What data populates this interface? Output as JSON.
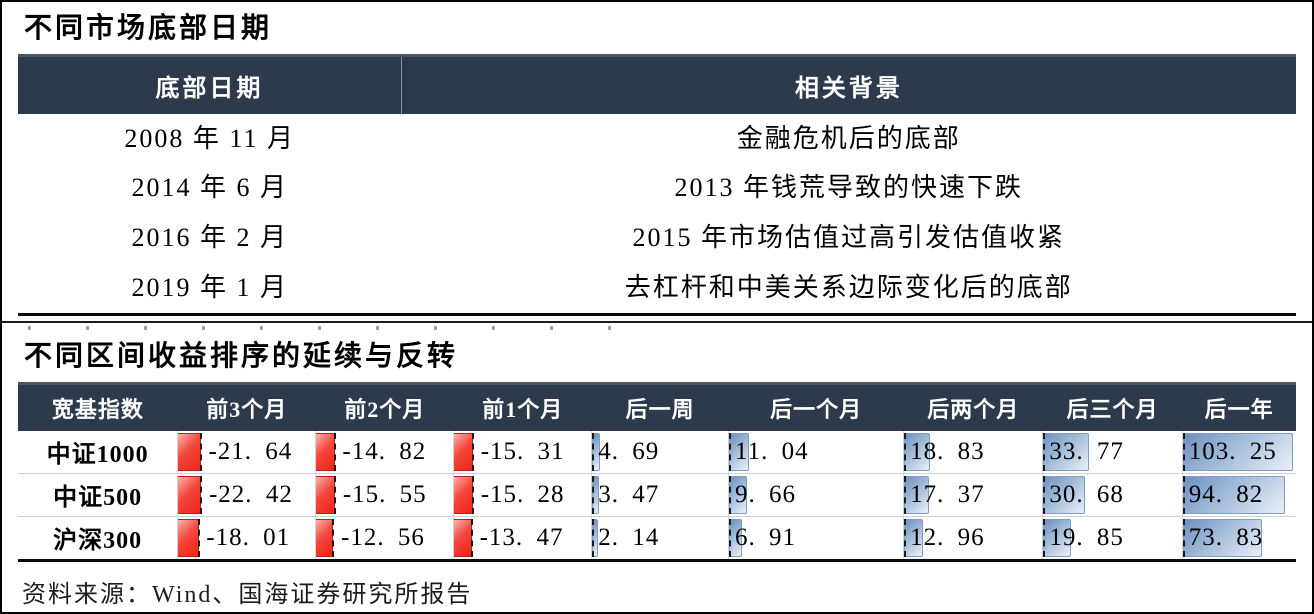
{
  "panel1": {
    "title": "不同市场底部日期",
    "table": {
      "headers": [
        "底部日期",
        "相关背景"
      ],
      "rows": [
        [
          "2008 年 11 月",
          "金融危机后的底部"
        ],
        [
          "2014 年 6 月",
          "2013 年钱荒导致的快速下跌"
        ],
        [
          "2016 年 2 月",
          "2015 年市场估值过高引发估值收紧"
        ],
        [
          "2019 年 1 月",
          "去杠杆和中美关系边际变化后的底部"
        ]
      ]
    }
  },
  "panel2": {
    "title": "不同区间收益排序的延续与反转",
    "table": {
      "headers": [
        "宽基指数",
        "前3个月",
        "前2个月",
        "前1个月",
        "后一周",
        "后一个月",
        "后两个月",
        "后三个月",
        "后一年"
      ],
      "rows": [
        {
          "index": "中证1000",
          "values": [
            -21.64,
            -14.82,
            -15.31,
            4.69,
            11.04,
            18.83,
            33.77,
            103.25
          ]
        },
        {
          "index": "中证500",
          "values": [
            -22.42,
            -15.55,
            -15.28,
            3.47,
            9.66,
            17.37,
            30.68,
            94.82
          ]
        },
        {
          "index": "沪深300",
          "values": [
            -18.01,
            -12.56,
            -13.47,
            2.14,
            6.91,
            12.96,
            19.85,
            73.83
          ]
        }
      ]
    },
    "source": "资料来源：Wind、国海证券研究所报告"
  },
  "colors": {
    "header_bg": "#2c3a4b",
    "negative_bar": "#f0352b",
    "positive_bar": "#6e90bf"
  },
  "chart_data": {
    "type": "table",
    "title": "不同区间收益排序的延续与反转",
    "columns": [
      "宽基指数",
      "前3个月",
      "前2个月",
      "前1个月",
      "后一周",
      "后一个月",
      "后两个月",
      "后三个月",
      "后一年"
    ],
    "rows": [
      [
        "中证1000",
        -21.64,
        -14.82,
        -15.31,
        4.69,
        11.04,
        18.83,
        33.77,
        103.25
      ],
      [
        "中证500",
        -22.42,
        -15.55,
        -15.28,
        3.47,
        9.66,
        17.37,
        30.68,
        94.82
      ],
      [
        "沪深300",
        -18.01,
        -12.56,
        -13.47,
        2.14,
        6.91,
        12.96,
        19.85,
        73.83
      ]
    ],
    "notes": "负值显示红色数据条，正值显示蓝色渐变数据条"
  }
}
